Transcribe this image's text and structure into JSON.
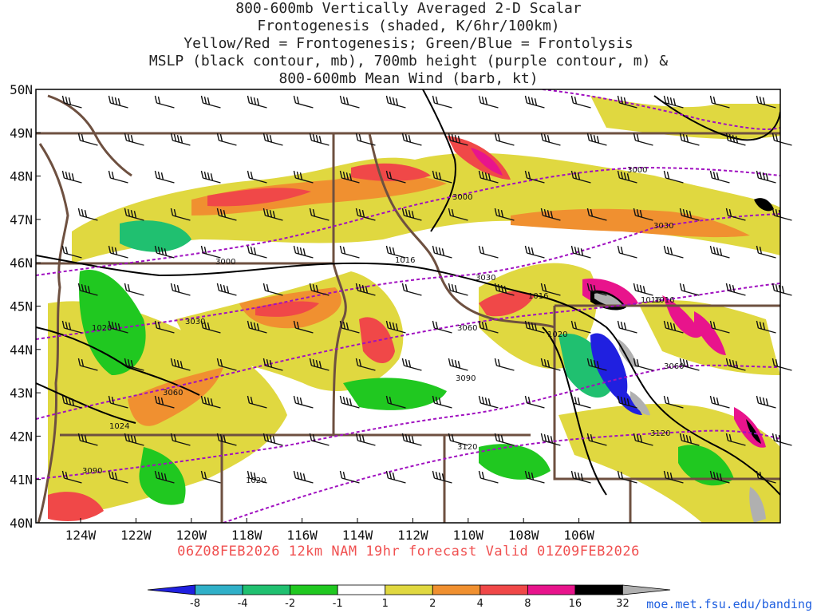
{
  "title_lines": [
    "800-600mb Vertically Averaged 2-D Scalar",
    "Frontogenesis (shaded, K/6hr/100km)",
    "Yellow/Red = Frontogenesis;  Green/Blue = Frontolysis",
    "MSLP (black contour, mb), 700mb height (purple contour, m) &",
    "800-600mb Mean Wind (barb, kt)"
  ],
  "lat_labels": [
    "50N",
    "49N",
    "48N",
    "47N",
    "46N",
    "45N",
    "44N",
    "43N",
    "42N",
    "41N",
    "40N"
  ],
  "lon_labels": [
    "124W",
    "122W",
    "120W",
    "118W",
    "116W",
    "114W",
    "112W",
    "110W",
    "108W",
    "106W"
  ],
  "valid_text": "06Z08FEB2026 12km NAM 19hr forecast Valid 01Z09FEB2026",
  "url": "moe.met.fsu.edu/banding",
  "colorbar": {
    "ticks": [
      "-8",
      "-4",
      "-2",
      "-1",
      "1",
      "2",
      "4",
      "8",
      "16",
      "32"
    ],
    "colors": [
      "#2020e0",
      "#30b0c8",
      "#20c070",
      "#20c820",
      "#ffffff",
      "#e0d840",
      "#f09030",
      "#f04848",
      "#e8148c",
      "#000000",
      "#b0b0b0"
    ]
  },
  "isobar_labels": [
    "1016",
    "1020",
    "1016",
    "1020",
    "1016",
    "1024",
    "1020",
    "1016"
  ],
  "height_labels": [
    "3000",
    "3000",
    "3030",
    "3000",
    "3030",
    "3060",
    "3030",
    "3060",
    "3090",
    "3060",
    "3090",
    "3120",
    "3120",
    "3090"
  ],
  "colors": {
    "title": "#222222",
    "valid": "#f05050",
    "url": "#2060e0",
    "border": "#6e5040",
    "height_contour": "#a010c0",
    "isobar": "#000000"
  }
}
